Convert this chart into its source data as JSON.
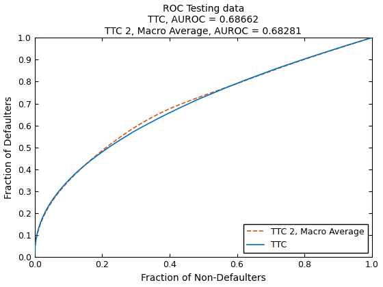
{
  "title_line1": "ROC Testing data",
  "title_line2": "TTC, AUROC = 0.68662",
  "title_line3": "TTC 2, Macro Average, AUROC = 0.68281",
  "xlabel": "Fraction of Non-Defaulters",
  "ylabel": "Fraction of Defaulters",
  "xlim": [
    0,
    1
  ],
  "ylim": [
    0,
    1
  ],
  "xticks": [
    0,
    0.2,
    0.4,
    0.6,
    0.8,
    1.0
  ],
  "yticks": [
    0,
    0.1,
    0.2,
    0.3,
    0.4,
    0.5,
    0.6,
    0.7,
    0.8,
    0.9,
    1.0
  ],
  "ttc_color": "#0072BD",
  "ttc2_color": "#D95319",
  "ttc_linewidth": 1.2,
  "ttc2_linewidth": 1.2,
  "legend_loc": "lower right",
  "bg_color": "#FFFFFF",
  "title_fontsize": 10,
  "label_fontsize": 10,
  "tick_fontsize": 9,
  "legend_fontsize": 9,
  "ttc_exponent": 0.458,
  "ttc2_exponent": 0.462,
  "separation_mid": 0.025
}
